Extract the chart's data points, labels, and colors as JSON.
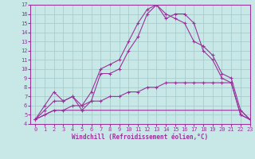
{
  "xlabel": "Windchill (Refroidissement éolien,°C)",
  "xlim": [
    -0.5,
    23
  ],
  "ylim": [
    4,
    17
  ],
  "xticks": [
    0,
    1,
    2,
    3,
    4,
    5,
    6,
    7,
    8,
    9,
    10,
    11,
    12,
    13,
    14,
    15,
    16,
    17,
    18,
    19,
    20,
    21,
    22,
    23
  ],
  "yticks": [
    4,
    5,
    6,
    7,
    8,
    9,
    10,
    11,
    12,
    13,
    14,
    15,
    16,
    17
  ],
  "bg_color": "#c8e8e8",
  "line_color": "#993399",
  "grid_color": "#a8cccc",
  "line1_x": [
    0,
    1,
    2,
    3,
    4,
    5,
    6,
    7,
    8,
    9,
    10,
    11,
    12,
    13,
    14,
    15,
    16,
    17,
    18,
    19,
    20,
    21,
    22,
    23
  ],
  "line1_y": [
    4.5,
    6.0,
    7.5,
    6.5,
    7.0,
    6.0,
    7.5,
    10.0,
    10.5,
    11.0,
    13.0,
    15.0,
    16.5,
    17.0,
    16.0,
    15.5,
    15.0,
    13.0,
    12.5,
    11.5,
    9.5,
    9.0,
    5.5,
    4.5
  ],
  "line2_x": [
    0,
    1,
    2,
    3,
    4,
    5,
    6,
    7,
    8,
    9,
    10,
    11,
    12,
    13,
    14,
    15,
    16,
    17,
    18,
    19,
    20,
    21,
    22,
    23
  ],
  "line2_y": [
    4.5,
    5.5,
    6.5,
    6.5,
    7.0,
    5.5,
    6.5,
    9.5,
    9.5,
    10.0,
    12.0,
    13.5,
    16.0,
    17.0,
    15.5,
    16.0,
    16.0,
    15.0,
    12.0,
    11.0,
    9.0,
    8.5,
    5.0,
    4.5
  ],
  "line3_x": [
    0,
    1,
    2,
    3,
    4,
    5,
    6,
    7,
    8,
    9,
    10,
    11,
    12,
    13,
    14,
    15,
    16,
    17,
    18,
    19,
    20,
    21,
    22,
    23
  ],
  "line3_y": [
    4.5,
    5.0,
    5.5,
    5.5,
    5.5,
    5.5,
    5.5,
    5.5,
    5.5,
    5.5,
    5.5,
    5.5,
    5.5,
    5.5,
    5.5,
    5.5,
    5.5,
    5.5,
    5.5,
    5.5,
    5.5,
    5.5,
    5.5,
    4.5
  ],
  "line4_x": [
    0,
    1,
    2,
    3,
    4,
    5,
    6,
    7,
    8,
    9,
    10,
    11,
    12,
    13,
    14,
    15,
    16,
    17,
    18,
    19,
    20,
    21,
    22,
    23
  ],
  "line4_y": [
    4.5,
    5.0,
    5.5,
    5.5,
    6.0,
    6.0,
    6.5,
    6.5,
    7.0,
    7.0,
    7.5,
    7.5,
    8.0,
    8.0,
    8.5,
    8.5,
    8.5,
    8.5,
    8.5,
    8.5,
    8.5,
    8.5,
    5.0,
    4.5
  ]
}
